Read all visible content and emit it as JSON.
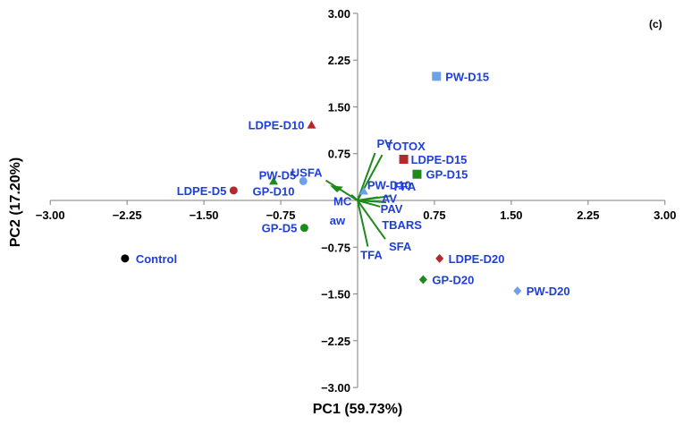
{
  "chart_data": {
    "type": "scatter",
    "title": "",
    "panel_label": "(c)",
    "xlabel": "PC1 (59.73%)",
    "ylabel": "PC2 (17.20%)",
    "xlim": [
      -3.0,
      3.0
    ],
    "ylim": [
      -3.0,
      3.0
    ],
    "xticks": [
      "−3.00",
      "−2.25",
      "−1.50",
      "−0.75",
      "0.75",
      "1.50",
      "2.25",
      "3.00"
    ],
    "xtick_values": [
      -3.0,
      -2.25,
      -1.5,
      -0.75,
      0.75,
      1.5,
      2.25,
      3.0
    ],
    "yticks": [
      "3.00",
      "2.25",
      "1.50",
      "0.75",
      "−0.75",
      "−1.50",
      "−2.25",
      "−3.00"
    ],
    "ytick_values": [
      3.0,
      2.25,
      1.5,
      0.75,
      -0.75,
      -1.5,
      -2.25,
      -3.0
    ],
    "grid": false,
    "label_color": "#1f3fd6",
    "scores": [
      {
        "label": "Control",
        "x": -2.27,
        "y": -0.93,
        "shape": "circle",
        "color": "#000000"
      },
      {
        "label": "LDPE-D5",
        "x": -1.21,
        "y": 0.16,
        "shape": "circle",
        "color": "#b5282c"
      },
      {
        "label": "PW-D5",
        "x": -0.53,
        "y": 0.31,
        "shape": "circle",
        "color": "#6fa0e8"
      },
      {
        "label": "GP-D5",
        "x": -0.52,
        "y": -0.44,
        "shape": "circle",
        "color": "#1e8a1e"
      },
      {
        "label": "LDPE-D10",
        "x": -0.45,
        "y": 1.21,
        "shape": "triangle",
        "color": "#b5282c"
      },
      {
        "label": "PW-D10",
        "x": 0.06,
        "y": 0.15,
        "shape": "triangle",
        "color": "#6fa0e8"
      },
      {
        "label": "GP-D10",
        "x": -0.82,
        "y": 0.31,
        "shape": "triangle",
        "color": "#1e8a1e"
      },
      {
        "label": "PW-D15",
        "x": 0.77,
        "y": 1.99,
        "shape": "square",
        "color": "#6fa0e8"
      },
      {
        "label": "LDPE-D15",
        "x": 0.45,
        "y": 0.66,
        "shape": "square",
        "color": "#b5282c"
      },
      {
        "label": "GP-D15",
        "x": 0.58,
        "y": 0.42,
        "shape": "square",
        "color": "#1e8a1e"
      },
      {
        "label": "LDPE-D20",
        "x": 0.8,
        "y": -0.93,
        "shape": "diamond",
        "color": "#b5282c"
      },
      {
        "label": "GP-D20",
        "x": 0.64,
        "y": -1.27,
        "shape": "diamond",
        "color": "#1e8a1e"
      },
      {
        "label": "PW-D20",
        "x": 1.56,
        "y": -1.45,
        "shape": "diamond",
        "color": "#6fa0e8"
      }
    ],
    "loadings": [
      {
        "label": "PV",
        "x": 0.17,
        "y": 0.76
      },
      {
        "label": "TOTOX",
        "x": 0.24,
        "y": 0.73
      },
      {
        "label": "USFA",
        "x": -0.31,
        "y": 0.32
      },
      {
        "label": "MC",
        "x": -0.06,
        "y": 0.09
      },
      {
        "label": "aw",
        "x": -0.04,
        "y": 0.04
      },
      {
        "label": "AV",
        "x": 0.2,
        "y": 0.05
      },
      {
        "label": "FFA",
        "x": 0.32,
        "y": 0.07
      },
      {
        "label": "PAV",
        "x": 0.28,
        "y": -0.03
      },
      {
        "label": "TBARS",
        "x": 0.22,
        "y": -0.1
      },
      {
        "label": "SFA",
        "x": 0.27,
        "y": -0.62
      },
      {
        "label": "TFA",
        "x": 0.1,
        "y": -0.74
      }
    ],
    "loading_color": "#1e8a1e"
  }
}
